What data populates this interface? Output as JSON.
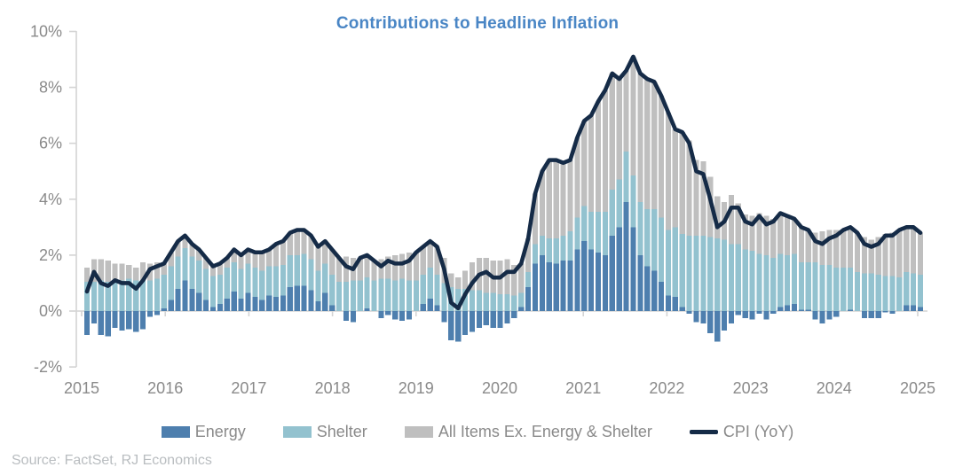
{
  "colors": {
    "title": "#4a86c5",
    "axis_label": "#8a8a8a",
    "axis_line": "#d4d4d4",
    "energy": "#4e7fae",
    "shelter": "#93c2cf",
    "ex_energy_shelter": "#bfbfbf",
    "cpi_line": "#152b47",
    "source_text": "#b9bdc0"
  },
  "legend": {
    "items": [
      {
        "label": "Energy",
        "color": "#4e7fae",
        "kind": "swatch"
      },
      {
        "label": "Shelter",
        "color": "#93c2cf",
        "kind": "swatch"
      },
      {
        "label": "All Items Ex. Energy & Shelter",
        "color": "#bfbfbf",
        "kind": "swatch"
      },
      {
        "label": "CPI (YoY)",
        "color": "#152b47",
        "kind": "line"
      }
    ]
  },
  "source": "Source: FactSet, RJ Economics",
  "chart_data": {
    "type": "bar",
    "subtype": "monthly stacked contribution bars with line overlay",
    "title": "Contributions to Headline Inflation",
    "xlabel": "",
    "ylabel": "",
    "x_tick_labels": [
      "2015",
      "2016",
      "2017",
      "2018",
      "2019",
      "2020",
      "2021",
      "2022",
      "2023",
      "2024",
      "2025"
    ],
    "y_ticks": [
      -2,
      0,
      2,
      4,
      6,
      8,
      10
    ],
    "y_tick_labels": [
      "-2%",
      "0%",
      "2%",
      "4%",
      "6%",
      "8%",
      "10%"
    ],
    "ylim": [
      -2.3,
      10
    ],
    "grid": false,
    "legend_position": "bottom",
    "points_per_year": 12,
    "series": [
      {
        "name": "Energy",
        "render": "stacked-bar",
        "color": "#4e7fae",
        "values": [
          -0.85,
          -0.45,
          -0.85,
          -0.9,
          -0.6,
          -0.7,
          -0.65,
          -0.75,
          -0.65,
          -0.2,
          -0.15,
          0.1,
          0.4,
          0.8,
          1.1,
          0.8,
          0.65,
          0.4,
          0.15,
          0.25,
          0.45,
          0.7,
          0.45,
          0.65,
          0.5,
          0.4,
          0.55,
          0.5,
          0.55,
          0.85,
          0.9,
          0.9,
          0.75,
          0.35,
          0.65,
          0.2,
          0.0,
          -0.35,
          -0.4,
          0.0,
          0.1,
          0.0,
          -0.25,
          -0.15,
          -0.3,
          -0.35,
          -0.3,
          0.0,
          0.25,
          0.45,
          0.2,
          -0.4,
          -1.05,
          -1.1,
          -0.85,
          -0.75,
          -0.6,
          -0.5,
          -0.6,
          -0.6,
          -0.45,
          -0.25,
          0.15,
          0.85,
          1.7,
          2.0,
          1.75,
          1.7,
          1.8,
          1.8,
          2.2,
          2.5,
          2.2,
          2.1,
          2.0,
          2.7,
          3.0,
          3.9,
          3.0,
          2.0,
          1.6,
          1.45,
          1.05,
          0.55,
          0.5,
          0.15,
          -0.1,
          -0.4,
          -0.45,
          -0.8,
          -1.1,
          -0.7,
          -0.45,
          -0.15,
          -0.25,
          -0.3,
          -0.1,
          -0.3,
          -0.1,
          0.15,
          0.2,
          0.25,
          0.05,
          0.05,
          -0.3,
          -0.45,
          -0.3,
          -0.2,
          0.0,
          0.05,
          0.0,
          -0.25,
          -0.25,
          -0.25,
          -0.05,
          -0.1,
          0.0,
          0.2,
          0.2,
          0.15
        ]
      },
      {
        "name": "Shelter",
        "render": "stacked-bar",
        "color": "#93c2cf",
        "values": [
          1.05,
          1.05,
          1.1,
          1.05,
          1.05,
          1.1,
          1.15,
          1.1,
          1.1,
          1.1,
          1.15,
          1.2,
          1.2,
          1.15,
          1.15,
          1.15,
          1.15,
          1.1,
          1.1,
          1.05,
          1.1,
          1.05,
          1.05,
          1.05,
          1.05,
          1.05,
          1.05,
          1.1,
          1.1,
          1.15,
          1.1,
          1.15,
          1.1,
          1.1,
          1.05,
          1.1,
          1.05,
          1.05,
          1.1,
          1.1,
          1.1,
          1.1,
          1.15,
          1.15,
          1.1,
          1.15,
          1.1,
          1.1,
          1.05,
          1.1,
          1.1,
          1.0,
          0.85,
          0.8,
          0.8,
          0.75,
          0.75,
          0.65,
          0.65,
          0.6,
          0.6,
          0.55,
          0.5,
          0.55,
          0.7,
          0.7,
          0.85,
          0.9,
          0.9,
          1.05,
          1.15,
          1.25,
          1.35,
          1.45,
          1.55,
          1.65,
          1.7,
          1.8,
          1.85,
          1.9,
          2.05,
          2.2,
          2.3,
          2.35,
          2.5,
          2.6,
          2.7,
          2.7,
          2.7,
          2.65,
          2.6,
          2.55,
          2.4,
          2.4,
          2.2,
          2.15,
          2.05,
          2.0,
          1.9,
          1.9,
          1.8,
          1.8,
          1.7,
          1.7,
          1.75,
          1.65,
          1.65,
          1.55,
          1.55,
          1.5,
          1.4,
          1.35,
          1.35,
          1.3,
          1.25,
          1.25,
          1.2,
          1.2,
          1.15,
          1.15
        ]
      },
      {
        "name": "All Items Ex. Energy & Shelter",
        "render": "stacked-bar",
        "color": "#bfbfbf",
        "values": [
          0.5,
          0.8,
          0.75,
          0.75,
          0.65,
          0.6,
          0.5,
          0.45,
          0.65,
          0.6,
          0.6,
          0.4,
          0.5,
          0.55,
          0.45,
          0.45,
          0.4,
          0.4,
          0.35,
          0.4,
          0.35,
          0.45,
          0.5,
          0.5,
          0.55,
          0.65,
          0.6,
          0.8,
          0.85,
          0.8,
          0.9,
          0.85,
          0.85,
          0.85,
          0.8,
          0.9,
          0.85,
          0.9,
          0.8,
          0.8,
          0.8,
          0.7,
          0.7,
          0.8,
          0.9,
          0.9,
          1.0,
          1.0,
          1.0,
          0.95,
          1.0,
          0.9,
          0.5,
          0.4,
          0.65,
          1.0,
          1.15,
          1.25,
          1.15,
          1.2,
          1.25,
          1.1,
          1.05,
          1.2,
          1.8,
          2.3,
          2.8,
          2.8,
          2.6,
          2.55,
          2.85,
          3.05,
          3.45,
          3.95,
          4.35,
          4.15,
          3.6,
          2.9,
          4.25,
          4.6,
          4.65,
          4.55,
          4.35,
          4.2,
          3.5,
          3.65,
          3.4,
          2.7,
          2.65,
          2.15,
          1.5,
          1.35,
          1.75,
          1.45,
          1.25,
          1.25,
          1.45,
          1.4,
          1.4,
          1.45,
          1.4,
          1.25,
          1.25,
          1.15,
          1.05,
          1.2,
          1.25,
          1.35,
          1.35,
          1.45,
          1.4,
          1.3,
          1.2,
          1.35,
          1.5,
          1.55,
          1.7,
          1.6,
          1.65,
          1.5
        ]
      },
      {
        "name": "CPI (YoY)",
        "render": "line",
        "color": "#152b47",
        "values": [
          0.7,
          1.4,
          1.0,
          0.9,
          1.1,
          1.0,
          1.0,
          0.8,
          1.1,
          1.5,
          1.6,
          1.7,
          2.1,
          2.5,
          2.7,
          2.4,
          2.2,
          1.9,
          1.6,
          1.7,
          1.9,
          2.2,
          2.0,
          2.2,
          2.1,
          2.1,
          2.2,
          2.4,
          2.5,
          2.8,
          2.9,
          2.9,
          2.7,
          2.3,
          2.5,
          2.2,
          1.9,
          1.6,
          1.5,
          1.9,
          2.0,
          1.8,
          1.6,
          1.8,
          1.7,
          1.7,
          1.8,
          2.1,
          2.3,
          2.5,
          2.3,
          1.5,
          0.3,
          0.1,
          0.6,
          1.0,
          1.3,
          1.4,
          1.2,
          1.2,
          1.4,
          1.4,
          1.7,
          2.6,
          4.2,
          5.0,
          5.4,
          5.4,
          5.3,
          5.4,
          6.2,
          6.8,
          7.0,
          7.5,
          7.9,
          8.5,
          8.3,
          8.6,
          9.1,
          8.5,
          8.3,
          8.2,
          7.7,
          7.1,
          6.5,
          6.4,
          6.0,
          5.0,
          4.9,
          4.0,
          3.0,
          3.2,
          3.7,
          3.7,
          3.2,
          3.1,
          3.4,
          3.1,
          3.2,
          3.5,
          3.4,
          3.3,
          3.0,
          2.9,
          2.5,
          2.4,
          2.6,
          2.7,
          2.9,
          3.0,
          2.8,
          2.4,
          2.3,
          2.4,
          2.7,
          2.7,
          2.9,
          3.0,
          3.0,
          2.8
        ]
      }
    ]
  }
}
